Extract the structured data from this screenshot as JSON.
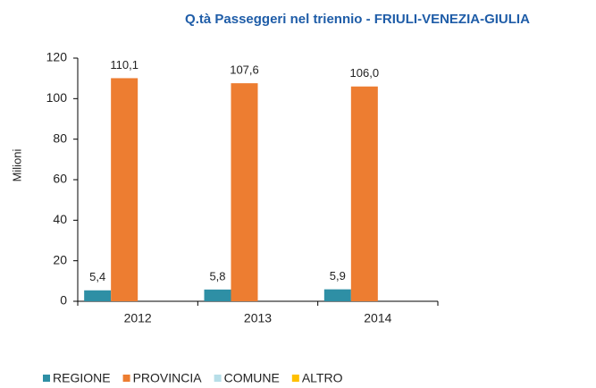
{
  "chart_data": {
    "type": "bar",
    "title": "Q.tà Passeggeri nel triennio - FRIULI-VENEZIA-GIULIA",
    "y_label": "Milioni",
    "categories": [
      "2012",
      "2013",
      "2014"
    ],
    "series": [
      {
        "name": "REGIONE",
        "color": "#2e8fa5",
        "values": [
          5.4,
          5.8,
          5.9
        ],
        "value_labels": [
          "5,4",
          "5,8",
          "5,9"
        ]
      },
      {
        "name": "PROVINCIA",
        "color": "#ed7d31",
        "values": [
          110.1,
          107.6,
          106.0
        ],
        "value_labels": [
          "110,1",
          "107,6",
          "106,0"
        ]
      },
      {
        "name": "COMUNE",
        "color": "#b7dee8",
        "values": [
          0,
          0,
          0
        ]
      },
      {
        "name": "ALTRO",
        "color": "#ffc000",
        "values": [
          0,
          0,
          0
        ]
      }
    ],
    "ylim": [
      0,
      120
    ],
    "yticks": [
      0,
      20,
      40,
      60,
      80,
      100,
      120
    ],
    "legend": "bottom"
  }
}
